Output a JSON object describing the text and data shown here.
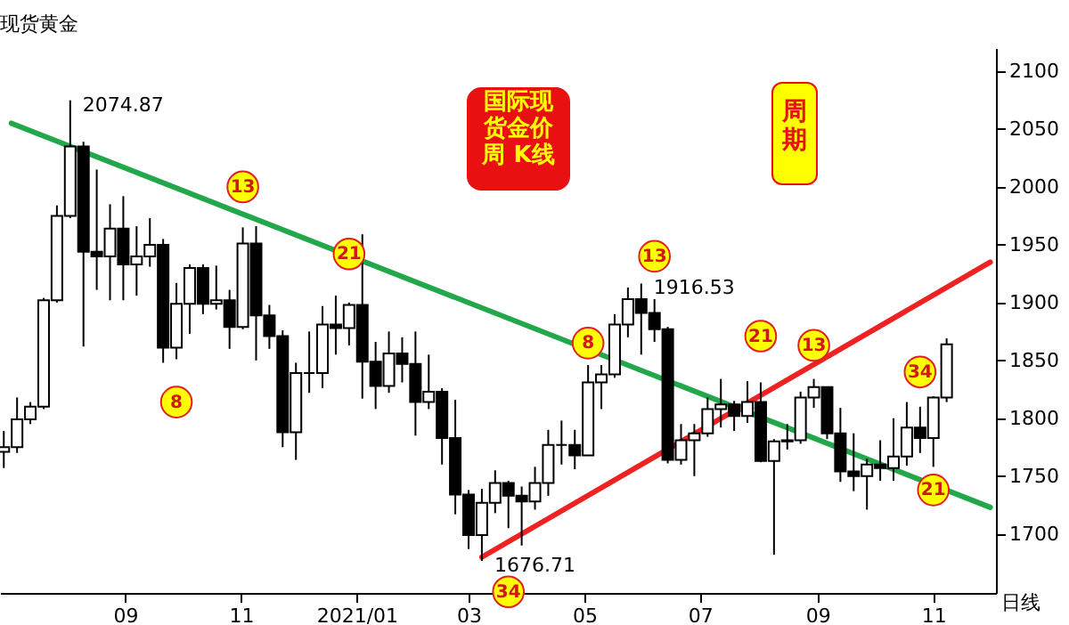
{
  "chart_data": {
    "type": "candlestick",
    "title": "现货黄金",
    "x": [
      "2020-06-29",
      "2020-07-06",
      "2020-07-13",
      "2020-07-20",
      "2020-07-27",
      "2020-08-03",
      "2020-08-10",
      "2020-08-17",
      "2020-08-24",
      "2020-08-31",
      "2020-09-07",
      "2020-09-14",
      "2020-09-21",
      "2020-09-28",
      "2020-10-05",
      "2020-10-12",
      "2020-10-19",
      "2020-10-26",
      "2020-11-02",
      "2020-11-09",
      "2020-11-16",
      "2020-11-23",
      "2020-11-30",
      "2020-12-07",
      "2020-12-14",
      "2020-12-21",
      "2020-12-28",
      "2021-01-04",
      "2021-01-11",
      "2021-01-18",
      "2021-01-25",
      "2021-02-01",
      "2021-02-08",
      "2021-02-15",
      "2021-02-22",
      "2021-03-01",
      "2021-03-08",
      "2021-03-15",
      "2021-03-22",
      "2021-03-29",
      "2021-04-05",
      "2021-04-12",
      "2021-04-19",
      "2021-04-26",
      "2021-05-03",
      "2021-05-10",
      "2021-05-17",
      "2021-05-24",
      "2021-05-31",
      "2021-06-07",
      "2021-06-14",
      "2021-06-21",
      "2021-06-28",
      "2021-07-05",
      "2021-07-12",
      "2021-07-19",
      "2021-07-26",
      "2021-08-02",
      "2021-08-09",
      "2021-08-16",
      "2021-08-23",
      "2021-08-30",
      "2021-09-06",
      "2021-09-13",
      "2021-09-20",
      "2021-09-27",
      "2021-10-04",
      "2021-10-11",
      "2021-10-18",
      "2021-10-25",
      "2021-11-01",
      "2021-11-08"
    ],
    "ohlc": [
      [
        1771,
        1789,
        1757,
        1775
      ],
      [
        1775,
        1818,
        1770,
        1799
      ],
      [
        1799,
        1814,
        1795,
        1810
      ],
      [
        1810,
        1904,
        1808,
        1902
      ],
      [
        1902,
        1984,
        1900,
        1975
      ],
      [
        1975,
        2074.87,
        1973,
        2035
      ],
      [
        2035,
        2039,
        1862,
        1944
      ],
      [
        1944,
        2015,
        1911,
        1940
      ],
      [
        1940,
        1985,
        1902,
        1964
      ],
      [
        1964,
        1992,
        1902,
        1933
      ],
      [
        1933,
        1966,
        1906,
        1940
      ],
      [
        1940,
        1973,
        1931,
        1950
      ],
      [
        1950,
        1955,
        1848,
        1861
      ],
      [
        1861,
        1917,
        1851,
        1899
      ],
      [
        1899,
        1933,
        1873,
        1930
      ],
      [
        1930,
        1933,
        1890,
        1899
      ],
      [
        1899,
        1932,
        1894,
        1902
      ],
      [
        1902,
        1911,
        1860,
        1879
      ],
      [
        1879,
        1965,
        1877,
        1951
      ],
      [
        1951,
        1966,
        1850,
        1889
      ],
      [
        1889,
        1898,
        1860,
        1871
      ],
      [
        1871,
        1876,
        1775,
        1788
      ],
      [
        1788,
        1848,
        1764,
        1839
      ],
      [
        1839,
        1875,
        1822,
        1839
      ],
      [
        1839,
        1897,
        1826,
        1881
      ],
      [
        1881,
        1906,
        1855,
        1878
      ],
      [
        1878,
        1900,
        1863,
        1898
      ],
      [
        1898,
        1959,
        1817,
        1849
      ],
      [
        1849,
        1866,
        1808,
        1828
      ],
      [
        1828,
        1875,
        1822,
        1856
      ],
      [
        1856,
        1870,
        1831,
        1847
      ],
      [
        1847,
        1875,
        1785,
        1814
      ],
      [
        1814,
        1855,
        1808,
        1823
      ],
      [
        1823,
        1826,
        1760,
        1783
      ],
      [
        1783,
        1816,
        1717,
        1734
      ],
      [
        1734,
        1738,
        1687,
        1699
      ],
      [
        1699,
        1739,
        1676.71,
        1727
      ],
      [
        1727,
        1755,
        1718,
        1744
      ],
      [
        1744,
        1746,
        1705,
        1733
      ],
      [
        1733,
        1741,
        1690,
        1728
      ],
      [
        1728,
        1758,
        1721,
        1744
      ],
      [
        1744,
        1790,
        1733,
        1777
      ],
      [
        1777,
        1798,
        1760,
        1777
      ],
      [
        1777,
        1790,
        1756,
        1768
      ],
      [
        1768,
        1846,
        1768,
        1831
      ],
      [
        1831,
        1846,
        1808,
        1838
      ],
      [
        1838,
        1890,
        1835,
        1881
      ],
      [
        1881,
        1913,
        1870,
        1903
      ],
      [
        1903,
        1916.53,
        1855,
        1891
      ],
      [
        1891,
        1903,
        1866,
        1877
      ],
      [
        1877,
        1879,
        1761,
        1764
      ],
      [
        1764,
        1795,
        1760,
        1781
      ],
      [
        1781,
        1795,
        1750,
        1787
      ],
      [
        1787,
        1818,
        1784,
        1808
      ],
      [
        1808,
        1834,
        1792,
        1812
      ],
      [
        1812,
        1815,
        1789,
        1802
      ],
      [
        1802,
        1832,
        1796,
        1814
      ],
      [
        1814,
        1831,
        1762,
        1763
      ],
      [
        1763,
        1782,
        1682,
        1780
      ],
      [
        1780,
        1795,
        1773,
        1781
      ],
      [
        1781,
        1823,
        1778,
        1818
      ],
      [
        1818,
        1834,
        1809,
        1827
      ],
      [
        1827,
        1827,
        1782,
        1787
      ],
      [
        1787,
        1809,
        1745,
        1754
      ],
      [
        1754,
        1787,
        1737,
        1750
      ],
      [
        1750,
        1765,
        1721,
        1760
      ],
      [
        1760,
        1781,
        1746,
        1757
      ],
      [
        1757,
        1800,
        1746,
        1767
      ],
      [
        1767,
        1814,
        1759,
        1792
      ],
      [
        1792,
        1810,
        1770,
        1783
      ],
      [
        1783,
        1819,
        1758,
        1818
      ],
      [
        1818,
        1869,
        1814,
        1864
      ]
    ],
    "series": [
      {
        "type": "line",
        "color": "#22a84a",
        "x": [
          "2020-07-03",
          "2021-12-01"
        ],
        "values": [
          2055,
          1723
        ]
      },
      {
        "type": "line",
        "color": "#ee2222",
        "x": [
          "2021-03-08",
          "2021-12-01"
        ],
        "values": [
          1680,
          1935
        ]
      }
    ],
    "xlim": [
      "2020-06-27",
      "2021-12-04"
    ],
    "xticks": [
      {
        "value": "2020-09-01",
        "label": "09"
      },
      {
        "value": "2020-11-01",
        "label": "11"
      },
      {
        "value": "2021-01-01",
        "label": "2021/01"
      },
      {
        "value": "2021-03-01",
        "label": "03"
      },
      {
        "value": "2021-05-01",
        "label": "05"
      },
      {
        "value": "2021-07-01",
        "label": "07"
      },
      {
        "value": "2021-09-01",
        "label": "09"
      },
      {
        "value": "2021-11-01",
        "label": "11"
      }
    ],
    "ylim": [
      1649,
      2120
    ],
    "yticks": [
      1700,
      1750,
      1800,
      1850,
      1900,
      1950,
      2000,
      2050,
      2100
    ],
    "annotations": [
      "国际现货金价周 K线",
      "周期",
      "日线",
      {
        "text": "2074.87",
        "x": "2020-08-03",
        "y": 2074.87
      },
      {
        "text": "1916.53",
        "x": "2021-05-31",
        "y": 1916.53
      },
      {
        "text": "1676.71",
        "x": "2021-03-08",
        "y": 1676.71
      },
      {
        "text": "8",
        "x": "2020-09-28",
        "y": 1814
      },
      {
        "text": "13",
        "x": "2020-11-02",
        "y": 2000
      },
      {
        "text": "21",
        "x": "2020-12-28",
        "y": 1942
      },
      {
        "text": "8",
        "x": "2021-05-03",
        "y": 1865
      },
      {
        "text": "13",
        "x": "2021-06-07",
        "y": 1940
      },
      {
        "text": "21",
        "x": "2021-08-02",
        "y": 1871
      },
      {
        "text": "13",
        "x": "2021-08-30",
        "y": 1863
      },
      {
        "text": "34",
        "x": "2021-10-25",
        "y": 1840
      },
      {
        "text": "21",
        "x": "2021-11-01",
        "y": 1738
      },
      {
        "text": "34",
        "x": "2021-03-22",
        "y": 1650
      }
    ]
  }
}
